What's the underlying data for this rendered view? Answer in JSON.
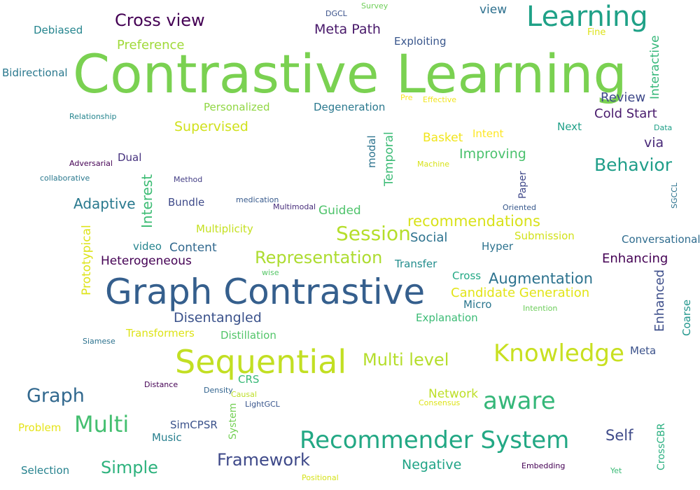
{
  "cloud": {
    "words": [
      {
        "text": "Contrastive Learning",
        "color": "#7ad151"
      },
      {
        "text": "Graph Contrastive",
        "color": "#355f8d"
      },
      {
        "text": "Sequential",
        "color": "#c2df23"
      },
      {
        "text": "Learning",
        "color": "#1fa187"
      },
      {
        "text": "Recommender System",
        "color": "#22a884"
      },
      {
        "text": "Knowledge",
        "color": "#c8e020"
      },
      {
        "text": "aware",
        "color": "#35b779"
      },
      {
        "text": "Multi",
        "color": "#44bf70"
      },
      {
        "text": "Cross view",
        "color": "#440154"
      },
      {
        "text": "Meta Path",
        "color": "#48186a"
      },
      {
        "text": "Behavior",
        "color": "#1f9e89"
      },
      {
        "text": "Representation",
        "color": "#addc30"
      },
      {
        "text": "Session",
        "color": "#b5de2b"
      },
      {
        "text": "Augmentation",
        "color": "#2c728e"
      },
      {
        "text": "Graph",
        "color": "#31688e"
      },
      {
        "text": "Multi level",
        "color": "#b5de2b"
      },
      {
        "text": "recommendations",
        "color": "#d8e219"
      },
      {
        "text": "Framework",
        "color": "#3e4989"
      },
      {
        "text": "Simple",
        "color": "#2db27d"
      },
      {
        "text": "Disentangled",
        "color": "#3b528b"
      },
      {
        "text": "Heterogeneous",
        "color": "#440154"
      },
      {
        "text": "Supervised",
        "color": "#d0e11c"
      },
      {
        "text": "Negative",
        "color": "#20a486"
      },
      {
        "text": "Adaptive",
        "color": "#29798e"
      },
      {
        "text": "Cold Start",
        "color": "#481a6c"
      },
      {
        "text": "Enhancing",
        "color": "#440154"
      },
      {
        "text": "Candidate Generation",
        "color": "#e2e418"
      },
      {
        "text": "Preference",
        "color": "#a0da39"
      },
      {
        "text": "Improving",
        "color": "#4ac16d"
      },
      {
        "text": "Self",
        "color": "#3e4a89"
      },
      {
        "text": "Review",
        "color": "#3e4989"
      },
      {
        "text": "Social",
        "color": "#2c728e"
      },
      {
        "text": "via",
        "color": "#482878"
      },
      {
        "text": "Content",
        "color": "#31688e"
      },
      {
        "text": "Exploiting",
        "color": "#39568c"
      },
      {
        "text": "Degeneration",
        "color": "#2a788e"
      },
      {
        "text": "Conversational",
        "color": "#2f6c8e"
      },
      {
        "text": "Guided",
        "color": "#4ec36b"
      },
      {
        "text": "Network",
        "color": "#bddf26"
      },
      {
        "text": "view",
        "color": "#2d708e"
      },
      {
        "text": "Debiased",
        "color": "#25858e"
      },
      {
        "text": "Bidirectional",
        "color": "#2a788e"
      },
      {
        "text": "Personalized",
        "color": "#90d743"
      },
      {
        "text": "Basket",
        "color": "#f1e51d"
      },
      {
        "text": "Intent",
        "color": "#fde725"
      },
      {
        "text": "Next",
        "color": "#1fa088"
      },
      {
        "text": "Dual",
        "color": "#46327e"
      },
      {
        "text": "Bundle",
        "color": "#3e4a89"
      },
      {
        "text": "Multiplicity",
        "color": "#c5e021"
      },
      {
        "text": "video",
        "color": "#25848e"
      },
      {
        "text": "Hyper",
        "color": "#2c728e"
      },
      {
        "text": "Submission",
        "color": "#d2e21b"
      },
      {
        "text": "Transfer",
        "color": "#228d8d"
      },
      {
        "text": "Cross",
        "color": "#22a884"
      },
      {
        "text": "Micro",
        "color": "#2a768e"
      },
      {
        "text": "Explanation",
        "color": "#3bbb75"
      },
      {
        "text": "Distillation",
        "color": "#52c569"
      },
      {
        "text": "Transformers",
        "color": "#dde318"
      },
      {
        "text": "Meta",
        "color": "#3b528b"
      },
      {
        "text": "SimCPSR",
        "color": "#3b528b"
      },
      {
        "text": "Music",
        "color": "#277f8e"
      },
      {
        "text": "Problem",
        "color": "#e5e419"
      },
      {
        "text": "Selection",
        "color": "#26828e"
      },
      {
        "text": "CRS",
        "color": "#38b977"
      },
      {
        "text": "Fine",
        "color": "#dde318"
      },
      {
        "text": "Relationship",
        "color": "#25858e"
      },
      {
        "text": "Adversarial",
        "color": "#440154"
      },
      {
        "text": "collaborative",
        "color": "#2a788e"
      },
      {
        "text": "Method",
        "color": "#433e85"
      },
      {
        "text": "medication",
        "color": "#375a8c"
      },
      {
        "text": "Multimodal",
        "color": "#472d7b"
      },
      {
        "text": "Oriented",
        "color": "#38598c"
      },
      {
        "text": "Machine",
        "color": "#d8e219"
      },
      {
        "text": "Effective",
        "color": "#f1e51d"
      },
      {
        "text": "Pre",
        "color": "#f8e621"
      },
      {
        "text": "Data",
        "color": "#1fa088"
      },
      {
        "text": "DGCL",
        "color": "#3b528b"
      },
      {
        "text": "Survey",
        "color": "#6ece58"
      },
      {
        "text": "wise",
        "color": "#56c667"
      },
      {
        "text": "Intention",
        "color": "#6ccd5a"
      },
      {
        "text": "Siamese",
        "color": "#2c728e"
      },
      {
        "text": "Distance",
        "color": "#440154"
      },
      {
        "text": "Density",
        "color": "#32648e"
      },
      {
        "text": "Causal",
        "color": "#bddf26"
      },
      {
        "text": "LightGCL",
        "color": "#39558c"
      },
      {
        "text": "Consensus",
        "color": "#dde318"
      },
      {
        "text": "Embedding",
        "color": "#440154"
      },
      {
        "text": "Yet",
        "color": "#3aba76"
      },
      {
        "text": "Positional",
        "color": "#d5e21a"
      },
      {
        "text": "Interactive",
        "color": "#35b779"
      },
      {
        "text": "Temporal",
        "color": "#3bbb75"
      },
      {
        "text": "modal",
        "color": "#2c738e"
      },
      {
        "text": "Paper",
        "color": "#3f4889"
      },
      {
        "text": "SGCCL",
        "color": "#2c728e"
      },
      {
        "text": "Interest",
        "color": "#3dbc74"
      },
      {
        "text": "Prototypical",
        "color": "#dde318"
      },
      {
        "text": "Enhanced",
        "color": "#3d4e8a"
      },
      {
        "text": "Coarse",
        "color": "#1f958b"
      },
      {
        "text": "System",
        "color": "#74d055"
      },
      {
        "text": "CrossCBR",
        "color": "#29af7f"
      }
    ]
  }
}
